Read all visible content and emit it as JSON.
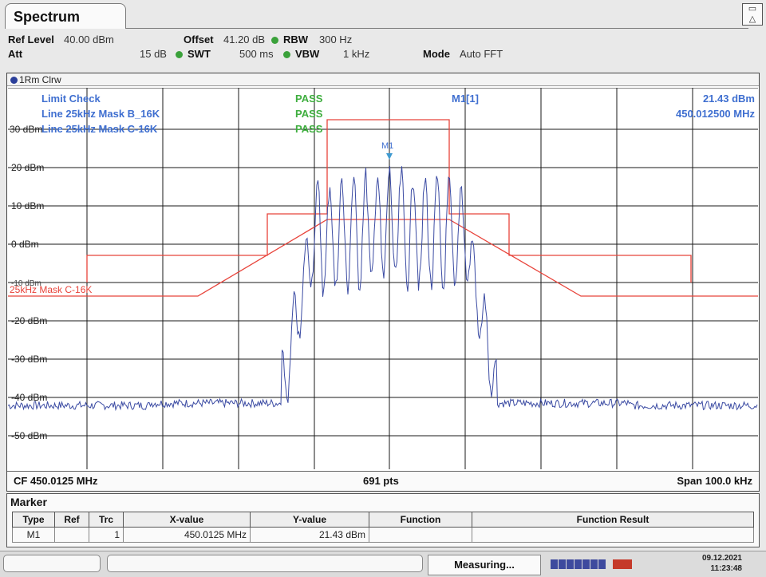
{
  "tab": {
    "title": "Spectrum"
  },
  "params": {
    "ref_level_label": "Ref Level",
    "ref_level_value": "40.00 dBm",
    "offset_label": "Offset",
    "offset_value": "41.20 dB",
    "rbw_label": "RBW",
    "rbw_value": "300 Hz",
    "att_label": "Att",
    "att_value": "15 dB",
    "swt_label": "SWT",
    "swt_value": "500 ms",
    "vbw_label": "VBW",
    "vbw_value": "1 kHz",
    "mode_label": "Mode",
    "mode_value": "Auto FFT"
  },
  "trace": {
    "label": "1Rm Clrw",
    "color": "#2b3f9a"
  },
  "plot": {
    "y_ticks": [
      "30 dBm",
      "20 dBm",
      "10 dBm",
      "0 dBm",
      "-10 dBm",
      "-20 dBm",
      "-30 dBm",
      "-40 dBm",
      "-50 dBm"
    ],
    "limit_check_label": "Limit Check",
    "limit_check_status": "PASS",
    "line1_label": "Line 25kHz Mask B_16K",
    "line1_status": "PASS",
    "line2_label": "Line 25kHz Mask C-16K",
    "line2_status": "PASS",
    "mask_label": "25kHz Mask C-16K",
    "marker_label": "M1",
    "marker_readout_name": "M1[1]",
    "marker_readout_level": "21.43 dBm",
    "marker_readout_freq": "450.012500 MHz",
    "trace_color": "#3b4ba3",
    "mask_color": "#e8433a",
    "pass_color": "#3fae3f",
    "info_color": "#3f6fd0"
  },
  "chart_data": {
    "type": "line",
    "xlabel": "",
    "ylabel": "",
    "center_frequency_mhz": 450.0125,
    "span_khz": 100.0,
    "ylim": [
      -60,
      40
    ],
    "grid": true
  },
  "bottombar": {
    "cf": "CF 450.0125 MHz",
    "pts": "691 pts",
    "span": "Span 100.0 kHz"
  },
  "marker_table": {
    "title": "Marker",
    "headers": [
      "Type",
      "Ref",
      "Trc",
      "X-value",
      "Y-value",
      "Function",
      "Function Result"
    ],
    "row": {
      "type": "M1",
      "ref": "",
      "trc": "1",
      "x": "450.0125 MHz",
      "y": "21.43 dBm",
      "func": "",
      "result": ""
    }
  },
  "status": {
    "measuring": "Measuring...",
    "date": "09.12.2021",
    "time": "11:23:48"
  }
}
